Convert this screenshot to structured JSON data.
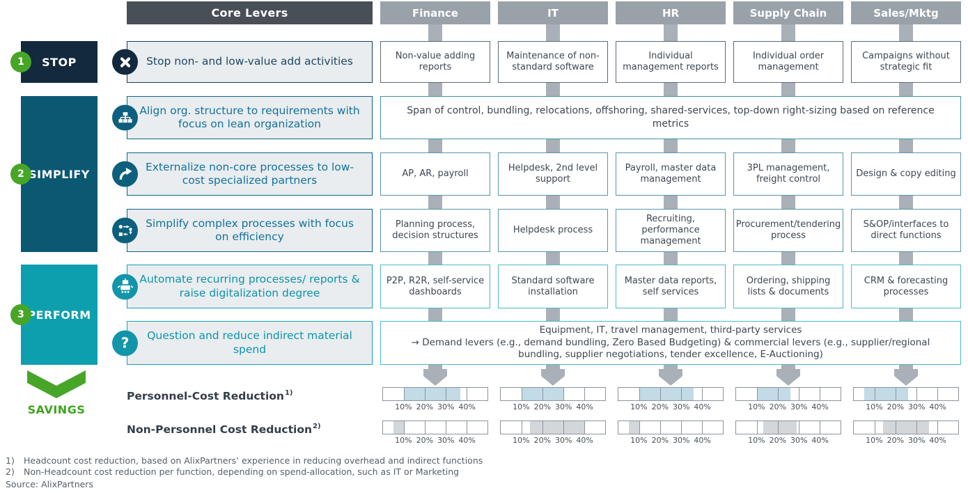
{
  "header": {
    "core_levers": "Core Levers",
    "columns": [
      "Finance",
      "IT",
      "HR",
      "Supply Chain",
      "Sales/Mktg"
    ]
  },
  "sections": [
    {
      "number": "1",
      "label": "STOP"
    },
    {
      "number": "2",
      "label": "SIMPLIFY"
    },
    {
      "number": "3",
      "label": "PERFORM"
    }
  ],
  "rows": [
    {
      "icon": "x-circle-icon",
      "lever": "Stop non- and low-value add activities",
      "cells": [
        "Non-value adding reports",
        "Maintenance of non-standard software",
        "Individual management reports",
        "Individual order management",
        "Campaigns without strategic fit"
      ]
    },
    {
      "icon": "org-chart-icon",
      "lever": "Align org. structure to requirements with focus on lean organization",
      "span": "Span of control, bundling, relocations, offshoring, shared-services, top-down right-sizing based on reference metrics"
    },
    {
      "icon": "externalize-arrow-icon",
      "lever": "Externalize non-core processes to low-cost specialized partners",
      "cells": [
        "AP, AR, payroll",
        "Helpdesk, 2nd level support",
        "Payroll, master data management",
        "3PL management, freight control",
        "Design & copy editing"
      ]
    },
    {
      "icon": "simplify-process-icon",
      "lever": "Simplify complex processes with focus on efficiency",
      "cells": [
        "Planning process, decision structures",
        "Helpdesk process",
        "Recruiting, performance management",
        "Procurement/tendering process",
        "S&OP/interfaces to direct functions"
      ]
    },
    {
      "icon": "robot-icon",
      "lever": "Automate recurring processes/ reports & raise digitalization degree",
      "cells": [
        "P2P, R2R, self-service dashboards",
        "Standard software installation",
        "Master data reports, self services",
        "Ordering, shipping lists & documents",
        "CRM & forecasting processes"
      ]
    },
    {
      "icon": "question-icon",
      "lever": "Question and reduce indirect material spend",
      "span_line1": "Equipment, IT, travel management, third-party services",
      "span_line2": "→ Demand levers (e.g., demand bundling, Zero Based Budgeting) & commercial levers (e.g., supplier/regional bundling, supplier negotiations, tender excellence, E-Auctioning)"
    }
  ],
  "savings": {
    "label": "SAVINGS",
    "scale_max": 50,
    "ticks": [
      "10%",
      "20%",
      "30%",
      "40%"
    ],
    "rows": [
      {
        "label": "Personnel-Cost Reduction",
        "sup": "1)",
        "fills": [
          {
            "start": 10,
            "end": 37
          },
          {
            "start": 10,
            "end": 30
          },
          {
            "start": 10,
            "end": 36
          },
          {
            "start": 10,
            "end": 26
          },
          {
            "start": 5,
            "end": 26
          }
        ]
      },
      {
        "label": "Non-Personnel Cost Reduction",
        "sup": "2)",
        "fills": [
          {
            "start": 5,
            "end": 10
          },
          {
            "start": 14,
            "end": 40
          },
          {
            "start": 5,
            "end": 10
          },
          {
            "start": 13,
            "end": 29
          },
          {
            "start": 14,
            "end": 36
          }
        ]
      }
    ]
  },
  "footnotes": [
    {
      "marker": "1)",
      "text": "Headcount cost reduction, based on AlixPartners’ experience in reducing overhead and indirect functions"
    },
    {
      "marker": "2)",
      "text": "Non-Headcount cost reduction per function, depending on spend-allocation, such as IT or Marketing"
    }
  ],
  "source": "Source: AlixPartners",
  "colors": {
    "header_dark": "#494f57",
    "header_gray": "#99a1a9",
    "stop": "#13293e",
    "simplify": "#0b5873",
    "perform": "#0d9fae",
    "green": "#47a527",
    "connector": "#a9b0b7",
    "personnel_fill": "#c2dbe6",
    "non_personnel_fill": "#d3d7da"
  }
}
